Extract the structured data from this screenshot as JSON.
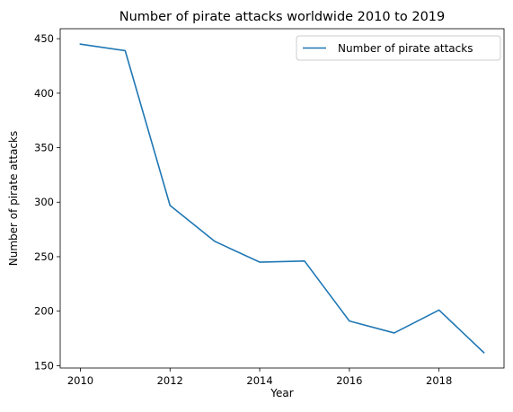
{
  "chart_data": {
    "type": "line",
    "title": "Number of pirate attacks worldwide 2010 to 2019",
    "xlabel": "Year",
    "ylabel": "Number of pirate attacks",
    "x": [
      2010,
      2011,
      2012,
      2013,
      2014,
      2015,
      2016,
      2017,
      2018,
      2019
    ],
    "series": [
      {
        "name": "Number of pirate attacks",
        "values": [
          445,
          439,
          297,
          264,
          245,
          246,
          191,
          180,
          201,
          162
        ],
        "color": "#1f77b4"
      }
    ],
    "xlim": [
      2009.55,
      2019.45
    ],
    "ylim": [
      147.85,
      459.15
    ],
    "xticks": [
      2010,
      2012,
      2014,
      2016,
      2018
    ],
    "xtick_labels": [
      "2010",
      "2012",
      "2014",
      "2016",
      "2018"
    ],
    "yticks": [
      150,
      200,
      250,
      300,
      350,
      400,
      450
    ],
    "ytick_labels": [
      "150",
      "200",
      "250",
      "300",
      "350",
      "400",
      "450"
    ],
    "grid": false,
    "legend_position": "upper right"
  }
}
